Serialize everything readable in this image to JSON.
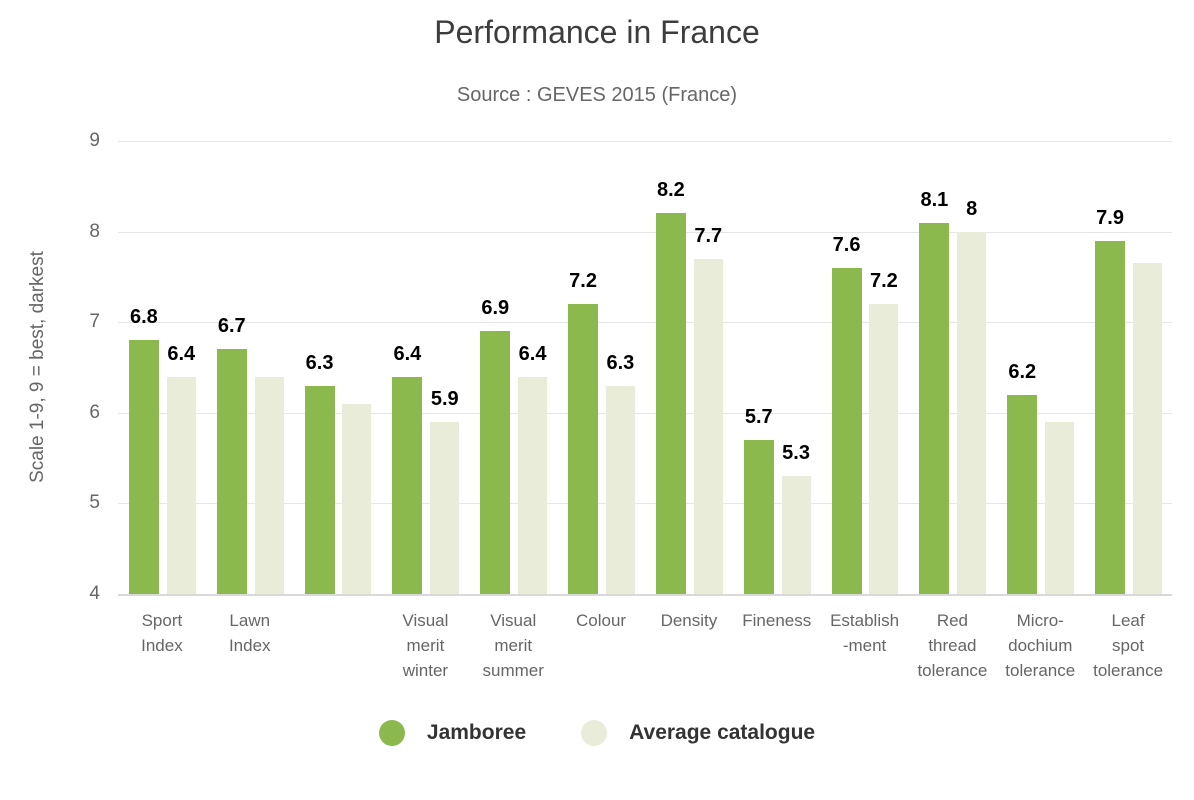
{
  "chart_data": {
    "type": "bar",
    "title": "Performance in France",
    "subtitle": "Source : GEVES 2015 (France)",
    "xlabel": "",
    "ylabel": "Scale 1-9, 9 = best, darkest",
    "ylim": [
      4,
      9
    ],
    "yticks": [
      4,
      5,
      6,
      7,
      8,
      9
    ],
    "grid": true,
    "legend_position": "bottom",
    "categories": [
      "Sport\nIndex",
      "Lawn\nIndex",
      "",
      "Visual\nmerit\nwinter",
      "Visual\nmerit\nsummer",
      "Colour",
      "Density",
      "Fineness",
      "Establish\n-ment",
      "Red\nthread\ntolerance",
      "Micro-\ndochium\ntolerance",
      "Leaf\nspot\ntolerance"
    ],
    "series": [
      {
        "name": "Jamboree",
        "color": "#8CB94E",
        "values": [
          6.8,
          6.7,
          6.3,
          6.4,
          6.9,
          7.2,
          8.2,
          5.7,
          7.6,
          8.1,
          6.2,
          7.9
        ],
        "labels": [
          "6.8",
          "6.7",
          "6.3",
          "6.4",
          "6.9",
          "7.2",
          "8.2",
          "5.7",
          "7.6",
          "8.1",
          "6.2",
          "7.9"
        ]
      },
      {
        "name": "Average catalogue",
        "color": "#E9ECD9",
        "values": [
          6.4,
          6.4,
          6.1,
          5.9,
          6.4,
          6.3,
          7.7,
          5.3,
          7.2,
          8,
          5.9,
          7.65
        ],
        "labels": [
          "6.4",
          null,
          null,
          "5.9",
          "6.4",
          "6.3",
          "7.7",
          "5.3",
          "7.2",
          "8",
          null,
          null
        ]
      }
    ],
    "colors": {
      "title_text": "#3d3d3d",
      "subtitle_text": "#666666",
      "axis_text": "#666666",
      "data_label_text": "#000000",
      "legend_text": "#333333",
      "gridline": "#e6e6e6",
      "axis_line": "#d9d9d9",
      "background": "#ffffff"
    }
  }
}
